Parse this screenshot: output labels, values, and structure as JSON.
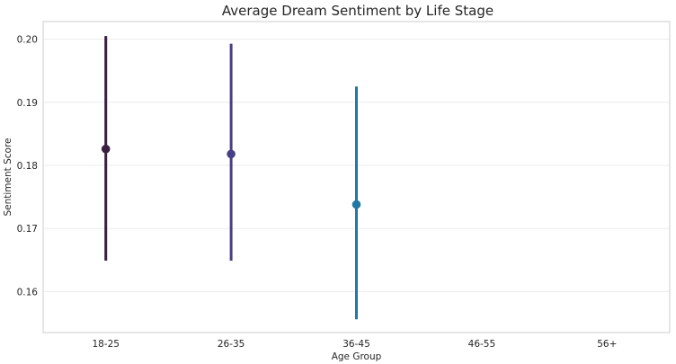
{
  "chart_data": {
    "type": "pointplot",
    "title": "Average Dream Sentiment by Life Stage",
    "xlabel": "Age Group",
    "ylabel": "Sentiment Score",
    "categories": [
      "18-25",
      "26-35",
      "36-45",
      "46-55",
      "56+"
    ],
    "values": [
      0.1826,
      0.1818,
      0.1738,
      null,
      null
    ],
    "ci_low": [
      0.1649,
      0.1649,
      0.1556,
      null,
      null
    ],
    "ci_high": [
      0.2005,
      0.1993,
      0.1925,
      null,
      null
    ],
    "colors": [
      "#3a1f40",
      "#463f85",
      "#2078a3",
      null,
      null
    ],
    "yticks": [
      0.16,
      0.17,
      0.18,
      0.19,
      0.2
    ],
    "ytick_labels": [
      "0.16",
      "0.17",
      "0.18",
      "0.19",
      "0.20"
    ],
    "ylim": [
      0.1535,
      0.2028
    ],
    "grid": true,
    "legend": "none"
  }
}
